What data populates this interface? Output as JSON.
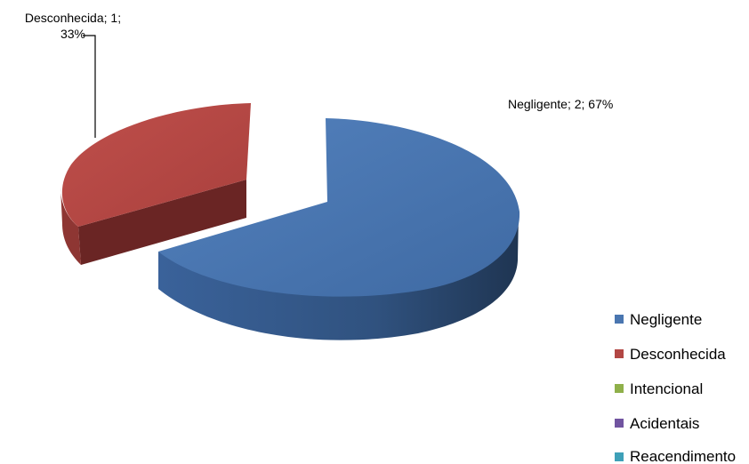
{
  "chart_data": {
    "type": "pie",
    "style": "3d-exploded",
    "categories": [
      "Negligente",
      "Desconhecida",
      "Intencional",
      "Acidentais",
      "Reacendimento"
    ],
    "values": [
      2,
      1,
      0,
      0,
      0
    ],
    "percentages": [
      67,
      33,
      0,
      0,
      0
    ],
    "colors": [
      "#4a76b0",
      "#b24744",
      "#8fb04a",
      "#7154a0",
      "#3ea0b8"
    ],
    "data_labels": [
      {
        "category": "Negligente",
        "text": "Negligente; 2; 67%"
      },
      {
        "category": "Desconhecida",
        "line1": "Desconhecida; 1;",
        "line2": "33%"
      }
    ],
    "legend_position": "right-bottom"
  }
}
